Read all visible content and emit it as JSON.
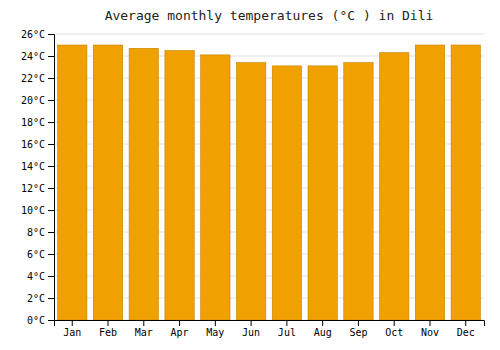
{
  "chart_data": {
    "type": "bar",
    "title": "Average monthly temperatures (°C ) in Dili",
    "categories": [
      "Jan",
      "Feb",
      "Mar",
      "Apr",
      "May",
      "Jun",
      "Jul",
      "Aug",
      "Sep",
      "Oct",
      "Nov",
      "Dec"
    ],
    "values": [
      25.0,
      25.0,
      24.7,
      24.5,
      24.1,
      23.4,
      23.1,
      23.1,
      23.4,
      24.3,
      25.0,
      25.0
    ],
    "color": "#F0A000",
    "ylim": [
      0,
      26
    ],
    "yticks": [
      {
        "value": 0,
        "label": "0°C"
      },
      {
        "value": 2,
        "label": "2°C"
      },
      {
        "value": 4,
        "label": "4°C"
      },
      {
        "value": 6,
        "label": "6°C"
      },
      {
        "value": 8,
        "label": "8°C"
      },
      {
        "value": 10,
        "label": "10°C"
      },
      {
        "value": 12,
        "label": "12°C"
      },
      {
        "value": 14,
        "label": "14°C"
      },
      {
        "value": 16,
        "label": "16°C"
      },
      {
        "value": 18,
        "label": "18°C"
      },
      {
        "value": 20,
        "label": "20°C"
      },
      {
        "value": 22,
        "label": "22°C"
      },
      {
        "value": 24,
        "label": "24°C"
      },
      {
        "value": 26,
        "label": "26°C"
      }
    ],
    "grid": true
  }
}
